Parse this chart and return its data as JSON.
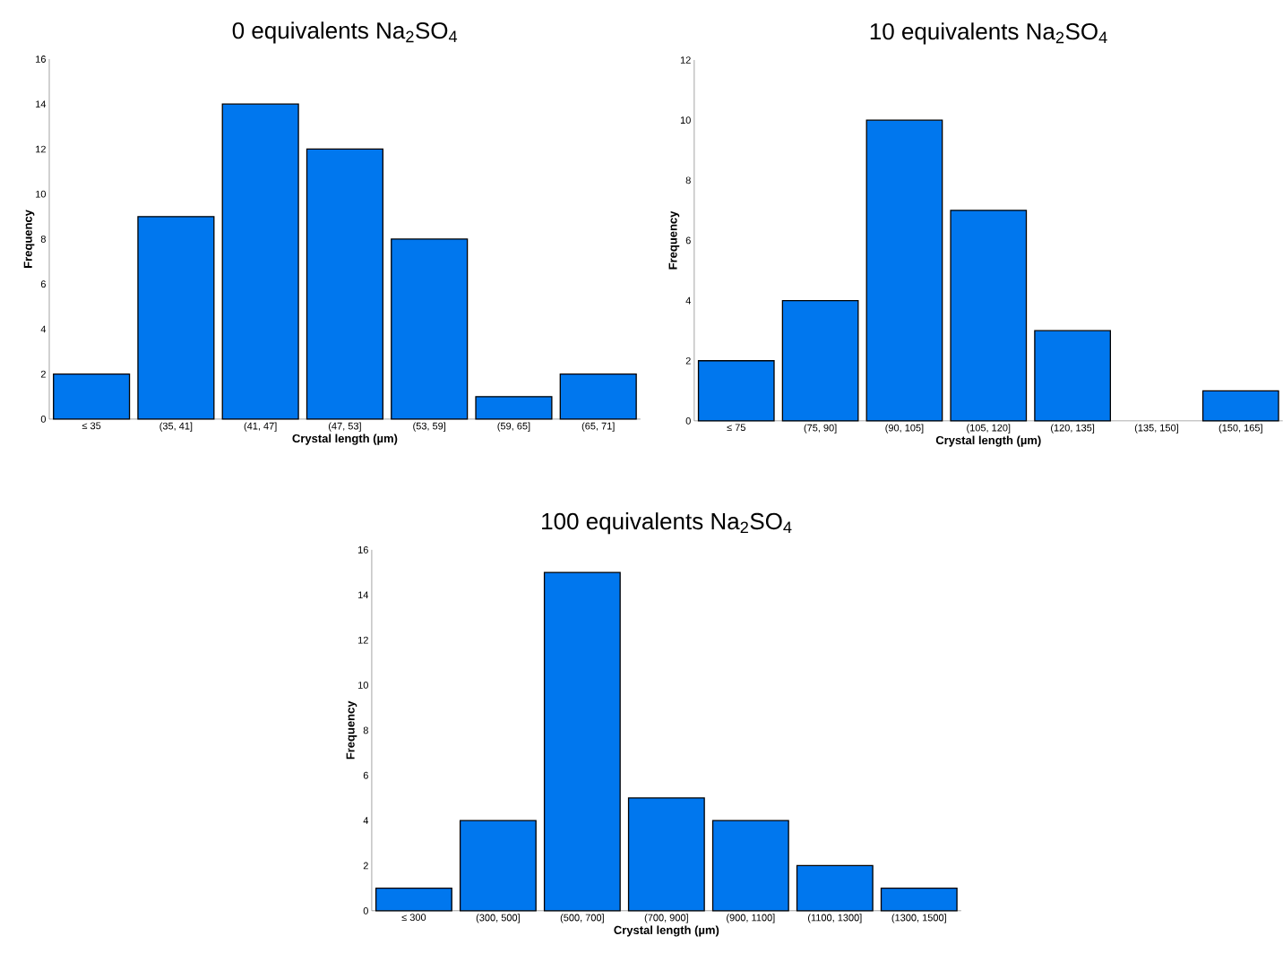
{
  "chart_data": [
    {
      "type": "bar",
      "title": "0 equivalents Na$_{2}$SO$_{4}$",
      "xlabel": "Crystal length (µm)",
      "ylabel": "Frequency",
      "categories": [
        "≤ 35",
        "(35, 41]",
        "(41, 47]",
        "(47, 53]",
        "(53, 59]",
        "(59, 65]",
        "(65, 71]"
      ],
      "values": [
        2,
        9,
        14,
        12,
        8,
        1,
        2
      ],
      "color": "#0077ee",
      "ylim": [
        0,
        16
      ],
      "yticks": [
        0,
        2,
        4,
        6,
        8,
        10,
        12,
        14,
        16
      ]
    },
    {
      "type": "bar",
      "title": "10 equivalents Na$_{2}$SO$_{4}$",
      "xlabel": "Crystal length (µm)",
      "ylabel": "Frequency",
      "categories": [
        "≤ 75",
        "(75, 90]",
        "(90, 105]",
        "(105, 120]",
        "(120, 135]",
        "(135, 150]",
        "(150, 165]"
      ],
      "values": [
        2,
        4,
        10,
        7,
        3,
        0,
        1
      ],
      "color": "#0077ee",
      "ylim": [
        0,
        12
      ],
      "yticks": [
        0,
        2,
        4,
        6,
        8,
        10,
        12
      ]
    },
    {
      "type": "bar",
      "title": "100 equivalents Na$_{2}$SO$_{4}$",
      "xlabel": "Crystal length (µm)",
      "ylabel": "Frequency",
      "categories": [
        "≤ 300",
        "(300, 500]",
        "(500, 700]",
        "(700, 900]",
        "(900, 1100]",
        "(1100, 1300]",
        "(1300, 1500]"
      ],
      "values": [
        1,
        4,
        15,
        5,
        4,
        2,
        1
      ],
      "color": "#0077ee",
      "ylim": [
        0,
        16
      ],
      "yticks": [
        0,
        2,
        4,
        6,
        8,
        10,
        12,
        14,
        16
      ]
    }
  ]
}
